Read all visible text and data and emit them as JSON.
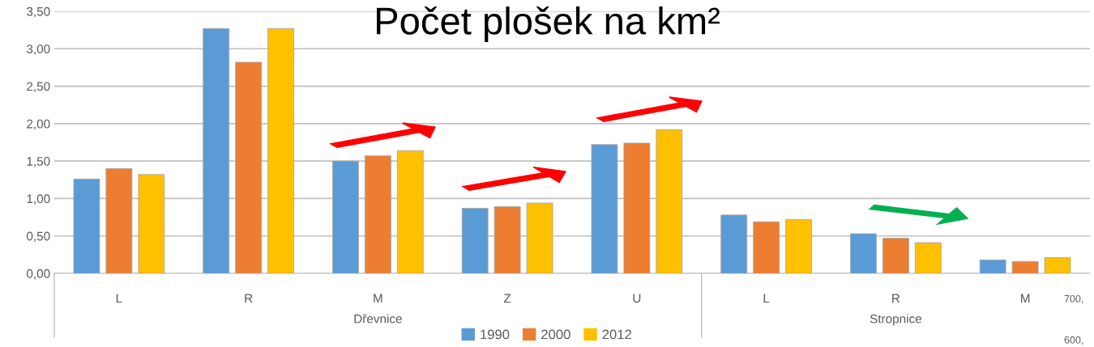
{
  "chart_data": {
    "type": "bar",
    "title": "Počet plošek na km²",
    "categories": [
      "L",
      "R",
      "M",
      "Z",
      "U",
      "L",
      "R",
      "M"
    ],
    "series": [
      {
        "name": "1990",
        "color": "#5b9bd5",
        "values": [
          1.26,
          3.27,
          1.5,
          0.87,
          1.72,
          0.78,
          0.53,
          0.18
        ]
      },
      {
        "name": "2000",
        "color": "#ed7d31",
        "values": [
          1.4,
          2.82,
          1.57,
          0.89,
          1.74,
          0.69,
          0.47,
          0.16
        ]
      },
      {
        "name": "2012",
        "color": "#ffc000",
        "values": [
          1.32,
          3.27,
          1.64,
          0.94,
          1.92,
          0.72,
          0.41,
          0.21
        ]
      }
    ],
    "ylim": [
      0,
      3.5
    ],
    "yticks": [
      {
        "value": 0,
        "label": "0,00"
      },
      {
        "value": 0.5,
        "label": "0,50"
      },
      {
        "value": 1,
        "label": "1,00"
      },
      {
        "value": 1.5,
        "label": "1,50"
      },
      {
        "value": 2,
        "label": "2,00"
      },
      {
        "value": 2.5,
        "label": "2,50"
      },
      {
        "value": 3,
        "label": "3,00"
      },
      {
        "value": 3.5,
        "label": "3,50"
      }
    ],
    "grid": "y",
    "legend": "bottom",
    "annotations": [
      "Dřevnice",
      "Stropnice",
      "700,",
      "600,"
    ]
  }
}
